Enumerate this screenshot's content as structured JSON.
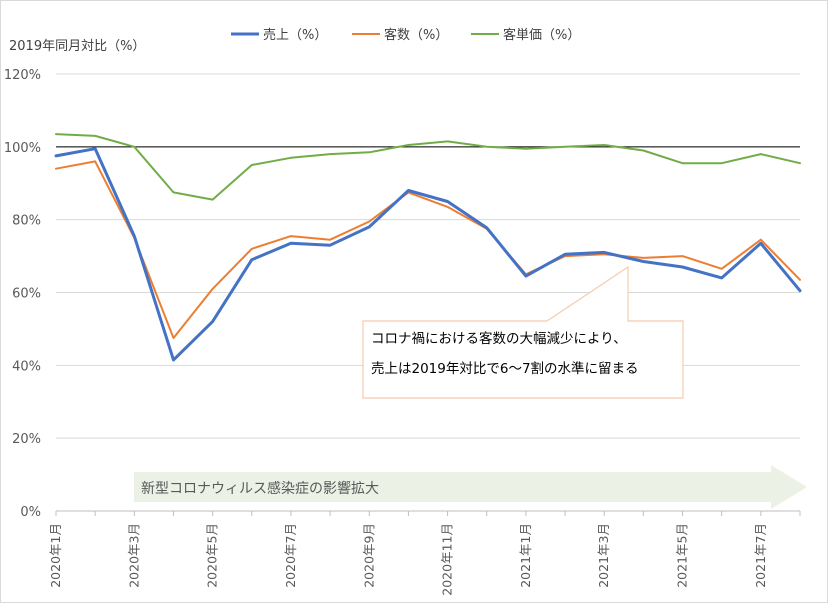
{
  "chart_data": {
    "type": "line",
    "ylabel": "2019年同月対比（%）",
    "ylim": [
      0,
      120
    ],
    "yticks": [
      0,
      20,
      40,
      60,
      80,
      100,
      120
    ],
    "ytick_labels": [
      "0%",
      "20%",
      "40%",
      "60%",
      "80%",
      "100%",
      "120%"
    ],
    "x": [
      "2020年1月",
      "2020年2月",
      "2020年3月",
      "2020年4月",
      "2020年5月",
      "2020年6月",
      "2020年7月",
      "2020年8月",
      "2020年9月",
      "2020年10月",
      "2020年11月",
      "2020年12月",
      "2021年1月",
      "2021年2月",
      "2021年3月",
      "2021年4月",
      "2021年5月",
      "2021年6月",
      "2021年7月",
      "2021年8月"
    ],
    "xtick_labels_visible": [
      "2020年1月",
      "2020年3月",
      "2020年5月",
      "2020年7月",
      "2020年9月",
      "2020年11月",
      "2021年1月",
      "2021年3月",
      "2021年5月",
      "2021年7月"
    ],
    "legend_position": "top",
    "grid": true,
    "reference_line": 100,
    "series": [
      {
        "name": "売上（%）",
        "color": "#4472c4",
        "values": [
          97.5,
          99.5,
          75.5,
          41.5,
          52.0,
          69.0,
          73.5,
          73.0,
          78.0,
          88.0,
          85.0,
          77.8,
          64.5,
          70.5,
          71.0,
          68.5,
          67.0,
          64.0,
          73.5,
          60.5
        ]
      },
      {
        "name": "客数（%）",
        "color": "#ed7d31",
        "values": [
          94.0,
          96.0,
          75.0,
          47.5,
          61.0,
          72.0,
          75.5,
          74.5,
          79.5,
          87.5,
          83.5,
          77.5,
          65.0,
          70.0,
          70.5,
          69.5,
          70.0,
          66.5,
          74.5,
          63.5
        ]
      },
      {
        "name": "客単価（%）",
        "color": "#70ad47",
        "values": [
          103.5,
          103.0,
          100.0,
          87.5,
          85.5,
          95.0,
          97.0,
          98.0,
          98.5,
          100.5,
          101.5,
          100.0,
          99.5,
          100.0,
          100.5,
          99.0,
          95.5,
          95.5,
          98.0,
          95.5
        ]
      }
    ],
    "annotations": {
      "callout_lines": [
        "コロナ禍における客数の大幅減少により、",
        "売上は2019年対比で6～7割の水準に留まる"
      ],
      "arrow_text": "新型コロナウィルス感染症の影響拡大"
    }
  }
}
